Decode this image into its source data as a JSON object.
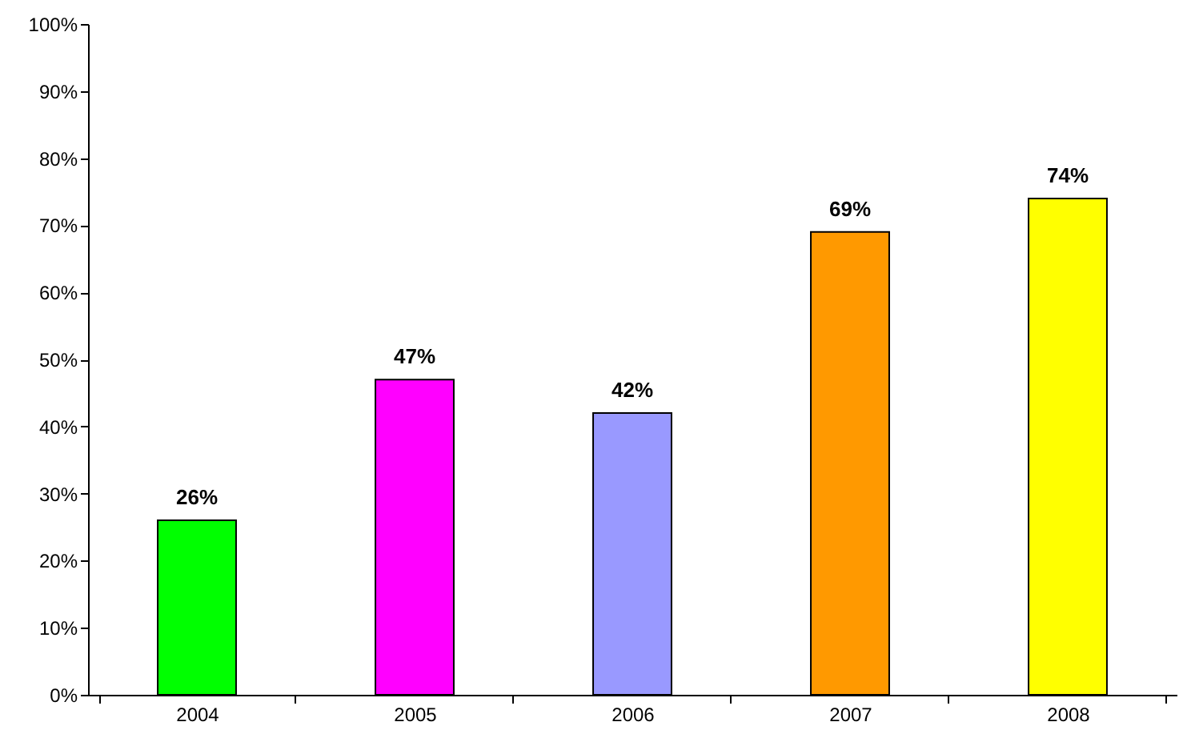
{
  "chart_data": {
    "type": "bar",
    "categories": [
      "2004",
      "2005",
      "2006",
      "2007",
      "2008"
    ],
    "values": [
      26,
      47,
      42,
      69,
      74
    ],
    "colors": [
      "#00ff00",
      "#ff00ff",
      "#9999ff",
      "#ff9900",
      "#ffff00"
    ],
    "value_labels": [
      "26%",
      "47%",
      "42%",
      "69%",
      "74%"
    ],
    "ylim": [
      0,
      100
    ],
    "yticks": [
      {
        "value": 0,
        "label": "0%"
      },
      {
        "value": 10,
        "label": "10%"
      },
      {
        "value": 20,
        "label": "20%"
      },
      {
        "value": 30,
        "label": "30%"
      },
      {
        "value": 40,
        "label": "40%"
      },
      {
        "value": 50,
        "label": "50%"
      },
      {
        "value": 60,
        "label": "60%"
      },
      {
        "value": 70,
        "label": "70%"
      },
      {
        "value": 80,
        "label": "80%"
      },
      {
        "value": 90,
        "label": "90%"
      },
      {
        "value": 100,
        "label": "100%"
      }
    ],
    "grid": false
  }
}
